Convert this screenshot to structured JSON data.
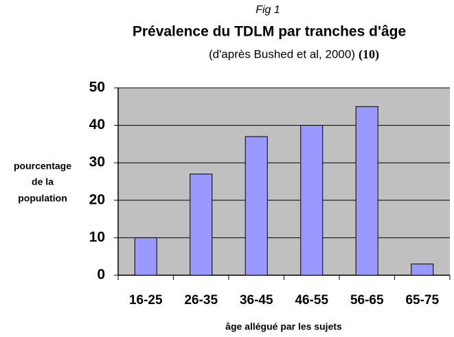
{
  "chart_data": {
    "type": "bar",
    "figure_label": "Fig 1",
    "title": "Prévalence du TDLM par tranches d'âge",
    "subtitle": "(d'après Bushed et al, 2000)",
    "reference": "(10)",
    "y_label": [
      "pourcentage",
      "de la",
      "population"
    ],
    "x_label": "âge allégué par les sujets",
    "categories": [
      "16-25",
      "26-35",
      "36-45",
      "46-55",
      "56-65",
      "65-75"
    ],
    "values": [
      10,
      27,
      37,
      40,
      45,
      3
    ],
    "color": "#9999ff",
    "ylim": [
      0,
      50
    ],
    "yticks": [
      0,
      10,
      20,
      30,
      40,
      50
    ],
    "grid": true
  }
}
